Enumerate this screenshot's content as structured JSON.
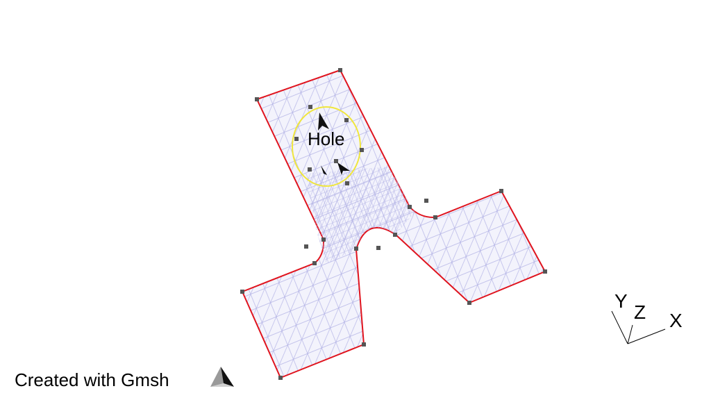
{
  "model": {
    "surface_label": "Hole",
    "credit_text": "Created with Gmsh"
  },
  "axes": {
    "x_label": "X",
    "y_label": "Y",
    "z_label": "Z"
  },
  "colors": {
    "boundary": "#e0141e",
    "hole_boundary": "#f0e63c",
    "mesh": "#b4b4e6",
    "mesh_fill": "#f3f3fc",
    "points": "#555555",
    "axes": "#000000",
    "background": "#ffffff"
  },
  "icons": {
    "logo": "gmsh-logo-icon",
    "normal_arrows": "surface-normal-arrow-icon"
  }
}
